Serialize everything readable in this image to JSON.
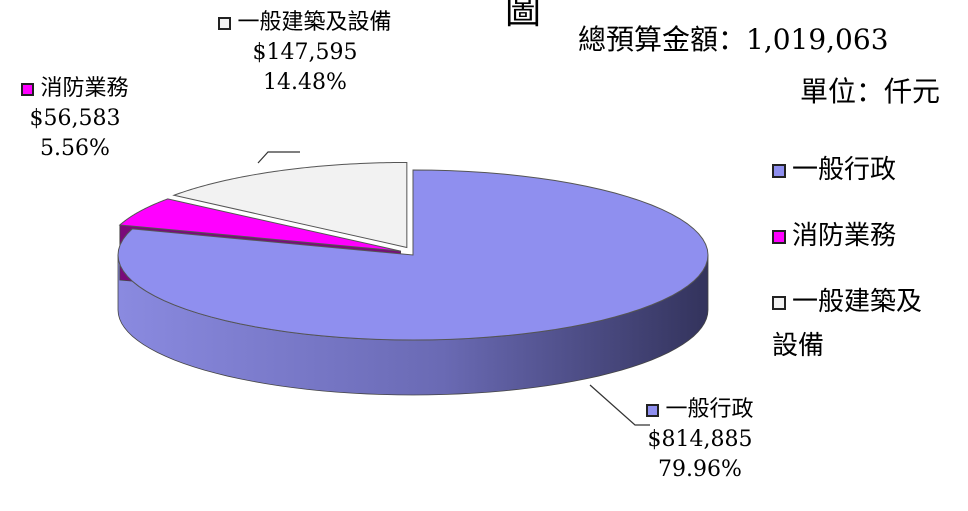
{
  "chart_data": {
    "type": "pie",
    "title": "圖",
    "annotations": [
      "總預算金額：1,019,063",
      "單位：仟元"
    ],
    "categories": [
      "一般行政",
      "消防業務",
      "一般建築及設備"
    ],
    "values": [
      814885,
      56583,
      147595
    ],
    "value_labels": [
      "$814,885",
      "$56,583",
      "$147,595"
    ],
    "percents": [
      79.96,
      5.56,
      14.48
    ],
    "percent_labels": [
      "79.96%",
      "5.56%",
      "14.48%"
    ],
    "colors": [
      "#8f8fef",
      "#ff00ff",
      "#f2f2f2"
    ],
    "legend": "right"
  }
}
